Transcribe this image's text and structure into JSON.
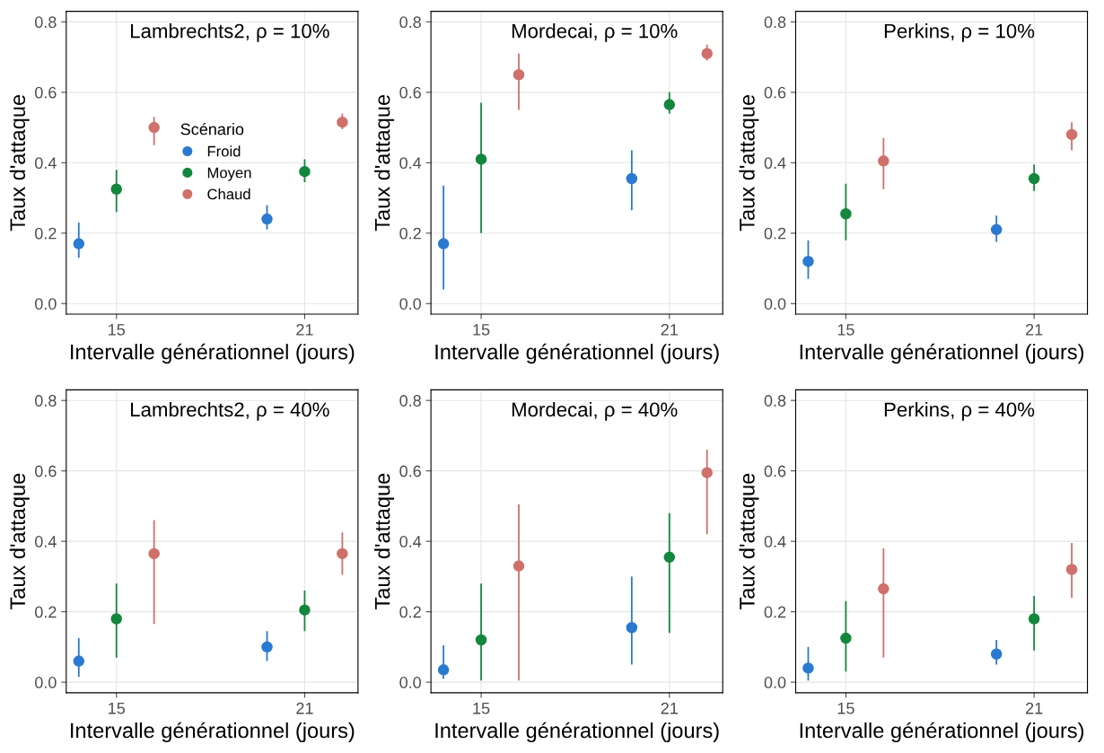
{
  "chart_data": [
    {
      "type": "scatter",
      "title": "Lambrechts2, ρ = 10%",
      "xlabel": "Intervalle générationnel (jours)",
      "ylabel": "Taux d'attaque",
      "xlim": [
        13.4,
        22.7
      ],
      "xticks": [
        15,
        21
      ],
      "ylim": [
        -0.03,
        0.83
      ],
      "yticks": [
        {
          "value": 0,
          "label": "0.0"
        },
        {
          "value": 0.2,
          "label": "0.2"
        },
        {
          "value": 0.4,
          "label": "0.4"
        },
        {
          "value": 0.6,
          "label": "0.6"
        },
        {
          "value": 0.8,
          "label": "0.8"
        }
      ],
      "grid": true,
      "marker": "circle",
      "legend": "center",
      "legend_title": "Scénario",
      "series": [
        {
          "name": "Froid",
          "color": "#2a7ad1",
          "x": [
            13.8,
            19.8
          ],
          "values": [
            0.17,
            0.24
          ],
          "errors": [
            [
              0.13,
              0.23
            ],
            [
              0.21,
              0.28
            ]
          ]
        },
        {
          "name": "Moyen",
          "color": "#13873d",
          "x": [
            15,
            21
          ],
          "values": [
            0.325,
            0.375
          ],
          "errors": [
            [
              0.26,
              0.38
            ],
            [
              0.345,
              0.41
            ]
          ]
        },
        {
          "name": "Chaud",
          "color": "#d0706a",
          "x": [
            16.2,
            22.2
          ],
          "values": [
            0.5,
            0.515
          ],
          "errors": [
            [
              0.45,
              0.53
            ],
            [
              0.495,
              0.54
            ]
          ]
        }
      ]
    },
    {
      "type": "scatter",
      "title": "Mordecai, ρ = 10%",
      "xlabel": "Intervalle générationnel (jours)",
      "ylabel": "Taux d'attaque",
      "xlim": [
        13.4,
        22.7
      ],
      "xticks": [
        15,
        21
      ],
      "ylim": [
        -0.03,
        0.83
      ],
      "yticks": [
        {
          "value": 0,
          "label": "0.0"
        },
        {
          "value": 0.2,
          "label": "0.2"
        },
        {
          "value": 0.4,
          "label": "0.4"
        },
        {
          "value": 0.6,
          "label": "0.6"
        },
        {
          "value": 0.8,
          "label": "0.8"
        }
      ],
      "grid": true,
      "marker": "circle",
      "series": [
        {
          "color": "#2a7ad1",
          "x": [
            13.8,
            19.8
          ],
          "values": [
            0.17,
            0.355
          ],
          "errors": [
            [
              0.04,
              0.335
            ],
            [
              0.265,
              0.435
            ]
          ]
        },
        {
          "color": "#13873d",
          "x": [
            15,
            21
          ],
          "values": [
            0.41,
            0.565
          ],
          "errors": [
            [
              0.2,
              0.57
            ],
            [
              0.54,
              0.6
            ]
          ]
        },
        {
          "color": "#d0706a",
          "x": [
            16.2,
            22.2
          ],
          "values": [
            0.65,
            0.71
          ],
          "errors": [
            [
              0.55,
              0.71
            ],
            [
              0.69,
              0.735
            ]
          ]
        }
      ]
    },
    {
      "type": "scatter",
      "title": "Perkins, ρ = 10%",
      "xlabel": "Intervalle générationnel (jours)",
      "ylabel": "Taux d'attaque",
      "xlim": [
        13.4,
        22.7
      ],
      "xticks": [
        15,
        21
      ],
      "ylim": [
        -0.03,
        0.83
      ],
      "yticks": [
        {
          "value": 0,
          "label": "0.0"
        },
        {
          "value": 0.2,
          "label": "0.2"
        },
        {
          "value": 0.4,
          "label": "0.4"
        },
        {
          "value": 0.6,
          "label": "0.6"
        },
        {
          "value": 0.8,
          "label": "0.8"
        }
      ],
      "grid": true,
      "marker": "circle",
      "series": [
        {
          "color": "#2a7ad1",
          "x": [
            13.8,
            19.8
          ],
          "values": [
            0.12,
            0.21
          ],
          "errors": [
            [
              0.07,
              0.18
            ],
            [
              0.175,
              0.25
            ]
          ]
        },
        {
          "color": "#13873d",
          "x": [
            15,
            21
          ],
          "values": [
            0.255,
            0.355
          ],
          "errors": [
            [
              0.18,
              0.34
            ],
            [
              0.32,
              0.395
            ]
          ]
        },
        {
          "color": "#d0706a",
          "x": [
            16.2,
            22.2
          ],
          "values": [
            0.405,
            0.48
          ],
          "errors": [
            [
              0.325,
              0.47
            ],
            [
              0.435,
              0.515
            ]
          ]
        }
      ]
    },
    {
      "type": "scatter",
      "title": "Lambrechts2, ρ = 40%",
      "xlabel": "Intervalle générationnel (jours)",
      "ylabel": "Taux d'attaque",
      "xlim": [
        13.4,
        22.7
      ],
      "xticks": [
        15,
        21
      ],
      "ylim": [
        -0.03,
        0.83
      ],
      "yticks": [
        {
          "value": 0,
          "label": "0.0"
        },
        {
          "value": 0.2,
          "label": "0.2"
        },
        {
          "value": 0.4,
          "label": "0.4"
        },
        {
          "value": 0.6,
          "label": "0.6"
        },
        {
          "value": 0.8,
          "label": "0.8"
        }
      ],
      "grid": true,
      "marker": "circle",
      "series": [
        {
          "color": "#2a7ad1",
          "x": [
            13.8,
            19.8
          ],
          "values": [
            0.06,
            0.1
          ],
          "errors": [
            [
              0.015,
              0.125
            ],
            [
              0.06,
              0.145
            ]
          ]
        },
        {
          "color": "#13873d",
          "x": [
            15,
            21
          ],
          "values": [
            0.18,
            0.205
          ],
          "errors": [
            [
              0.07,
              0.28
            ],
            [
              0.145,
              0.26
            ]
          ]
        },
        {
          "color": "#d0706a",
          "x": [
            16.2,
            22.2
          ],
          "values": [
            0.365,
            0.365
          ],
          "errors": [
            [
              0.165,
              0.46
            ],
            [
              0.305,
              0.425
            ]
          ]
        }
      ]
    },
    {
      "type": "scatter",
      "title": "Mordecai, ρ = 40%",
      "xlabel": "Intervalle générationnel (jours)",
      "ylabel": "Taux d'attaque",
      "xlim": [
        13.4,
        22.7
      ],
      "xticks": [
        15,
        21
      ],
      "ylim": [
        -0.03,
        0.83
      ],
      "yticks": [
        {
          "value": 0,
          "label": "0.0"
        },
        {
          "value": 0.2,
          "label": "0.2"
        },
        {
          "value": 0.4,
          "label": "0.4"
        },
        {
          "value": 0.6,
          "label": "0.6"
        },
        {
          "value": 0.8,
          "label": "0.8"
        }
      ],
      "grid": true,
      "marker": "circle",
      "series": [
        {
          "color": "#2a7ad1",
          "x": [
            13.8,
            19.8
          ],
          "values": [
            0.035,
            0.155
          ],
          "errors": [
            [
              0.01,
              0.105
            ],
            [
              0.05,
              0.3
            ]
          ]
        },
        {
          "color": "#13873d",
          "x": [
            15,
            21
          ],
          "values": [
            0.12,
            0.355
          ],
          "errors": [
            [
              0.005,
              0.28
            ],
            [
              0.14,
              0.48
            ]
          ]
        },
        {
          "color": "#d0706a",
          "x": [
            16.2,
            22.2
          ],
          "values": [
            0.33,
            0.595
          ],
          "errors": [
            [
              0.005,
              0.505
            ],
            [
              0.42,
              0.66
            ]
          ]
        }
      ]
    },
    {
      "type": "scatter",
      "title": "Perkins, ρ = 40%",
      "xlabel": "Intervalle générationnel (jours)",
      "ylabel": "Taux d'attaque",
      "xlim": [
        13.4,
        22.7
      ],
      "xticks": [
        15,
        21
      ],
      "ylim": [
        -0.03,
        0.83
      ],
      "yticks": [
        {
          "value": 0,
          "label": "0.0"
        },
        {
          "value": 0.2,
          "label": "0.2"
        },
        {
          "value": 0.4,
          "label": "0.4"
        },
        {
          "value": 0.6,
          "label": "0.6"
        },
        {
          "value": 0.8,
          "label": "0.8"
        }
      ],
      "grid": true,
      "marker": "circle",
      "series": [
        {
          "color": "#2a7ad1",
          "x": [
            13.8,
            19.8
          ],
          "values": [
            0.04,
            0.08
          ],
          "errors": [
            [
              0.005,
              0.1
            ],
            [
              0.05,
              0.12
            ]
          ]
        },
        {
          "color": "#13873d",
          "x": [
            15,
            21
          ],
          "values": [
            0.125,
            0.18
          ],
          "errors": [
            [
              0.03,
              0.23
            ],
            [
              0.09,
              0.245
            ]
          ]
        },
        {
          "color": "#d0706a",
          "x": [
            16.2,
            22.2
          ],
          "values": [
            0.265,
            0.32
          ],
          "errors": [
            [
              0.07,
              0.38
            ],
            [
              0.24,
              0.395
            ]
          ]
        }
      ]
    }
  ]
}
